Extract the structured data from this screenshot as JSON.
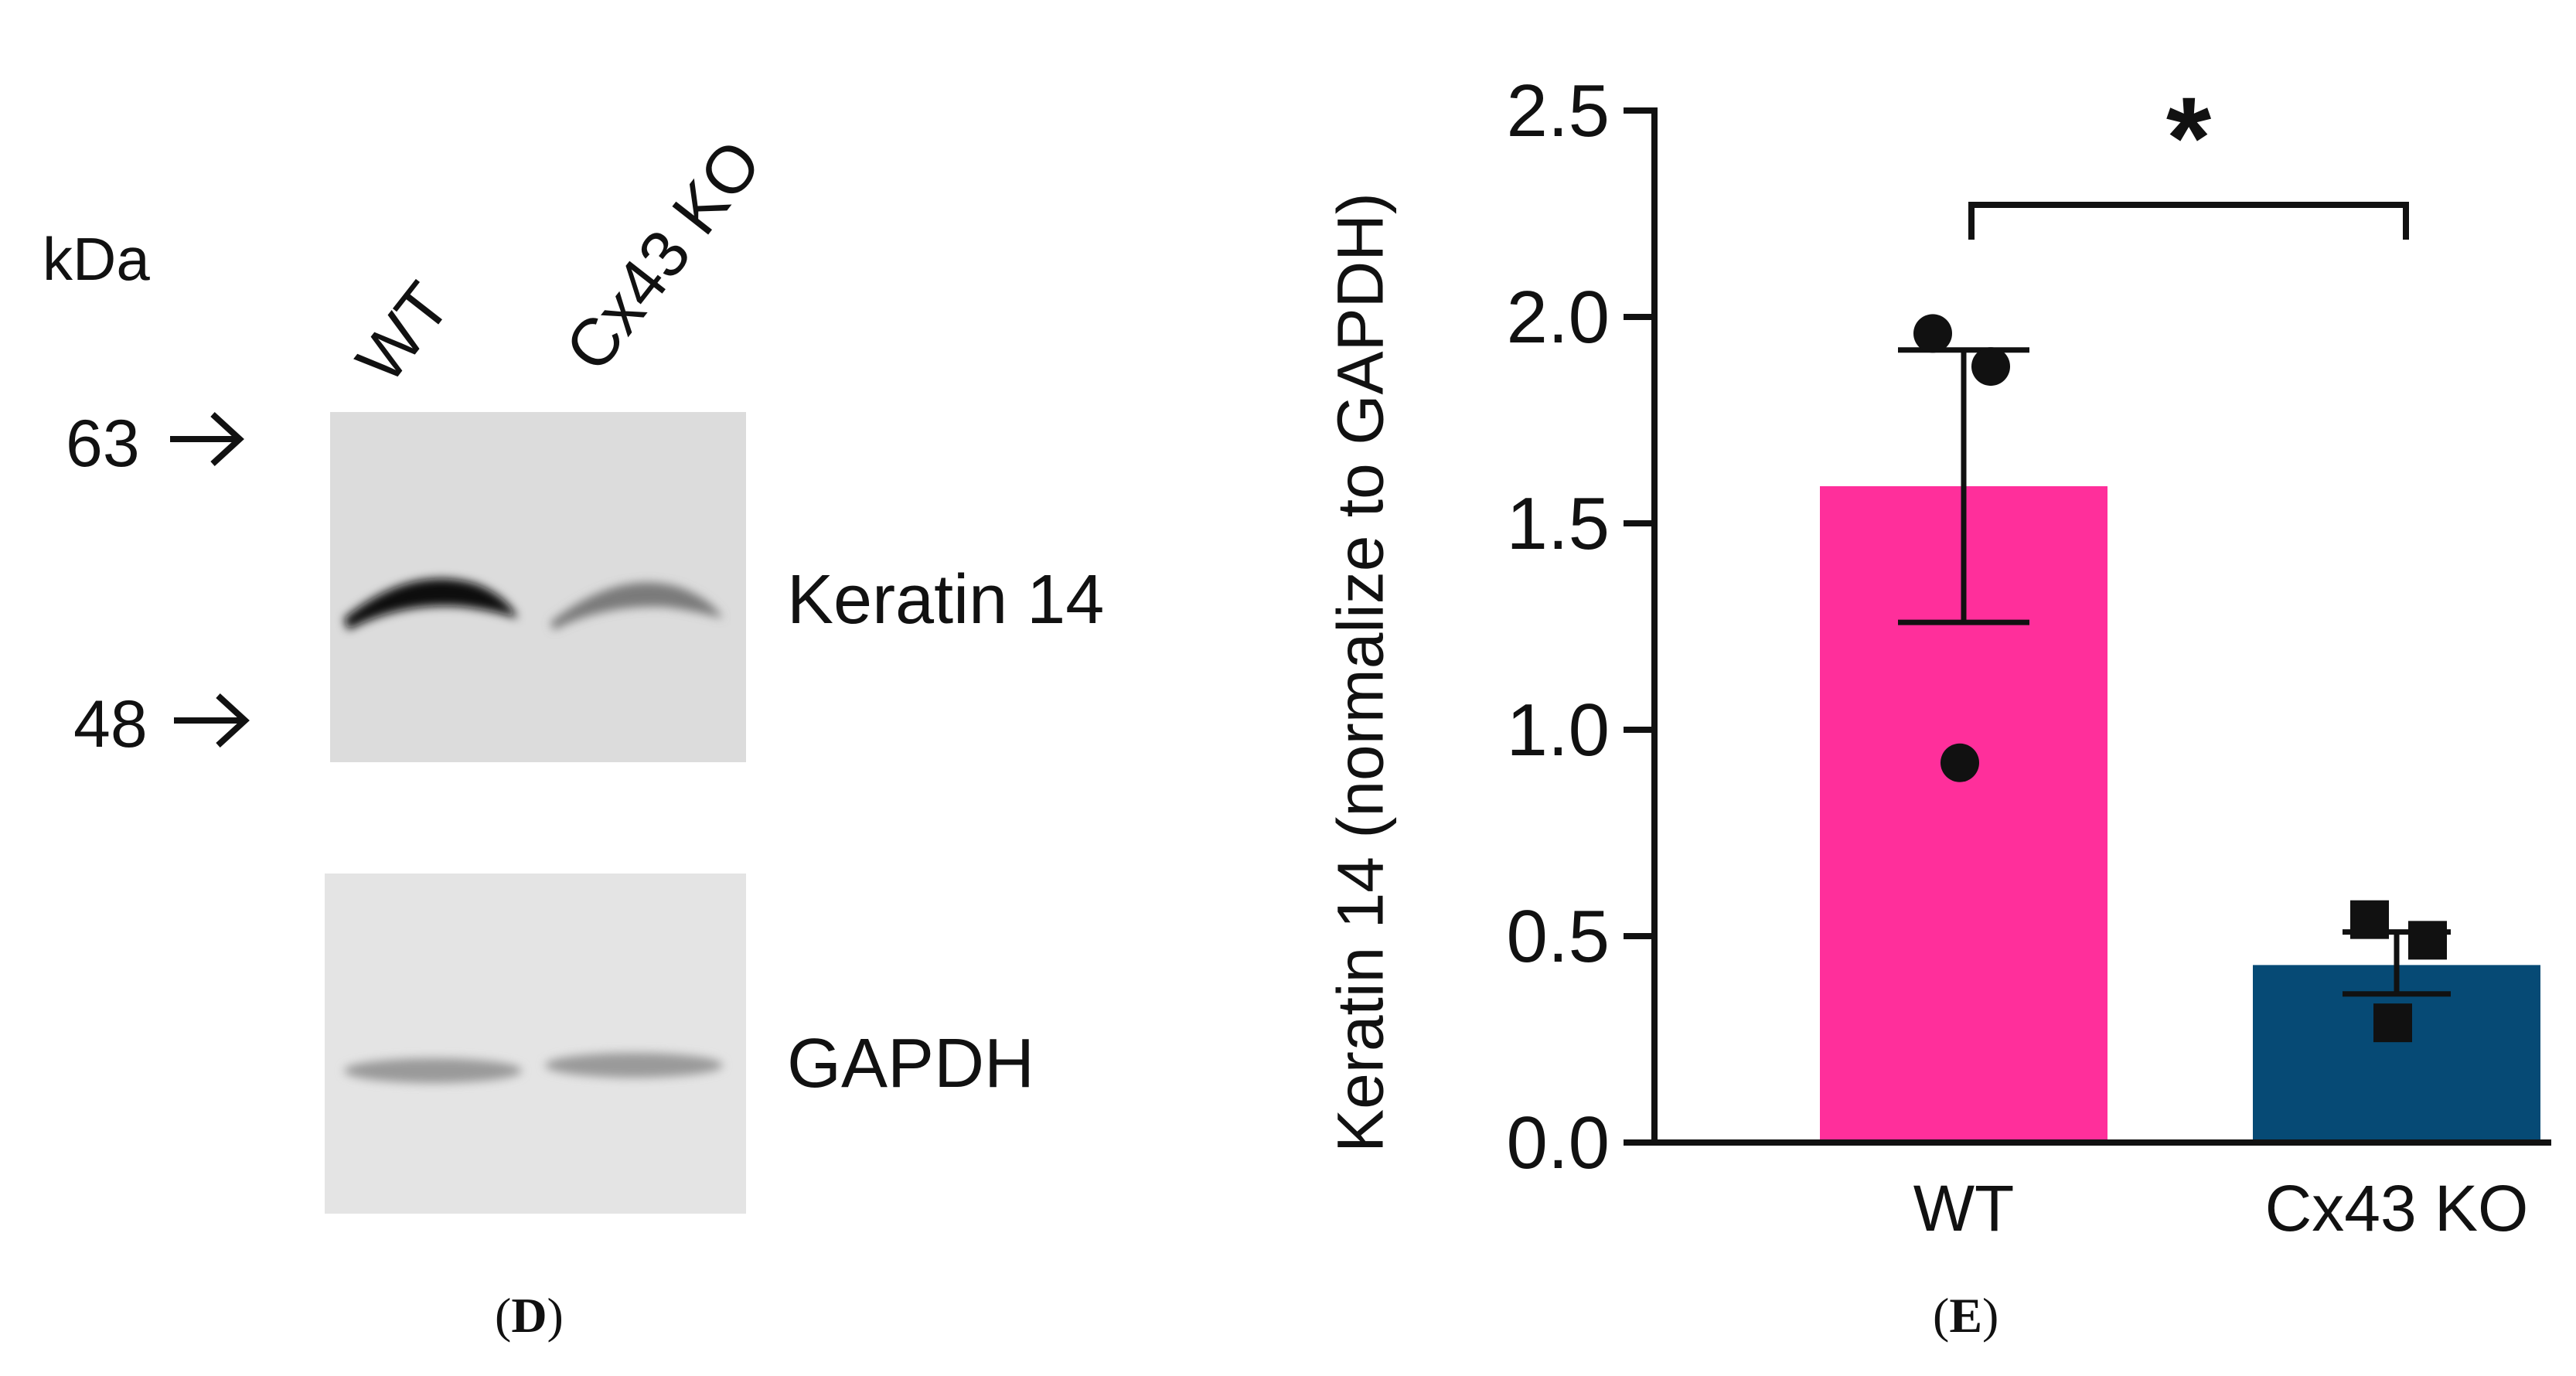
{
  "panel_d": {
    "label": "D",
    "kda_label": "kDa",
    "marker_63": "63",
    "marker_48": "48",
    "lanes": [
      "WT",
      "Cx43 KO"
    ],
    "blot_labels": [
      "Keratin 14",
      "GAPDH"
    ]
  },
  "panel_e": {
    "label": "E"
  },
  "chart_data": {
    "type": "bar",
    "title": "",
    "xlabel": "",
    "ylabel": "Keratin 14 (normalize to GAPDH)",
    "categories": [
      "WT",
      "Cx43 KO"
    ],
    "values": [
      1.59,
      0.43
    ],
    "error_upper": [
      1.92,
      0.51
    ],
    "error_lower": [
      1.26,
      0.36
    ],
    "points": [
      [
        1.96,
        1.88,
        0.92
      ],
      [
        0.54,
        0.49,
        0.29
      ]
    ],
    "point_markers": [
      "circle",
      "square"
    ],
    "colors": [
      "#ff2f9b",
      "#064a75"
    ],
    "ylim": [
      0,
      2.5
    ],
    "yticks": [
      "0.0",
      "0.5",
      "1.0",
      "1.5",
      "2.0",
      "2.5"
    ],
    "significance": "*",
    "grid": false
  }
}
